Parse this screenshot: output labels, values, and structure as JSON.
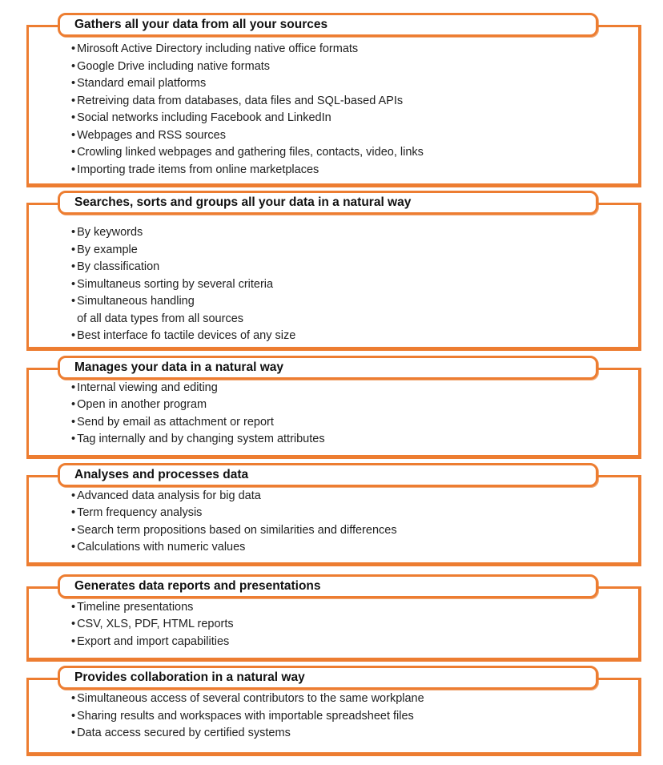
{
  "colors": {
    "accent": "#ED7D31",
    "text": "#212121"
  },
  "sections": [
    {
      "title": "Gathers all your data from all your sources",
      "items": [
        "Mirosoft Active Directory including native office formats",
        "Google Drive including native formats",
        "Standard email platforms",
        "Retreiving data from databases, data files and SQL-based APIs",
        "Social networks including Facebook and LinkedIn",
        "Webpages and RSS sources",
        "Crowling linked webpages and gathering files, contacts, video, links",
        "Importing trade items from online marketplaces"
      ]
    },
    {
      "title": "Searches, sorts and groups all your data in a natural way",
      "items": [
        "By keywords",
        "By example",
        "By classification",
        "Simultaneus sorting by several criteria",
        "Simultaneous handling\nof all data types from all sources",
        "Best interface fo tactile devices of any size"
      ]
    },
    {
      "title": "Manages your data in a natural way",
      "items": [
        "Internal viewing and editing",
        "Open in another program",
        "Send by email as attachment or report",
        "Tag internally and by changing system attributes"
      ]
    },
    {
      "title": "Analyses and processes data",
      "items": [
        "Advanced data analysis for big data",
        "Term frequency analysis",
        "Search term propositions based on similarities and differences",
        "Calculations with numeric values"
      ]
    },
    {
      "title": "Generates data reports and presentations",
      "items": [
        "Timeline presentations",
        "CSV, XLS, PDF, HTML reports",
        "Export and import capabilities"
      ]
    },
    {
      "title": "Provides collaboration in a natural way",
      "items": [
        "Simultaneous access of several contributors to the same workplane",
        "Sharing results and workspaces with importable spreadsheet files",
        "Data access secured by certified systems"
      ]
    }
  ]
}
